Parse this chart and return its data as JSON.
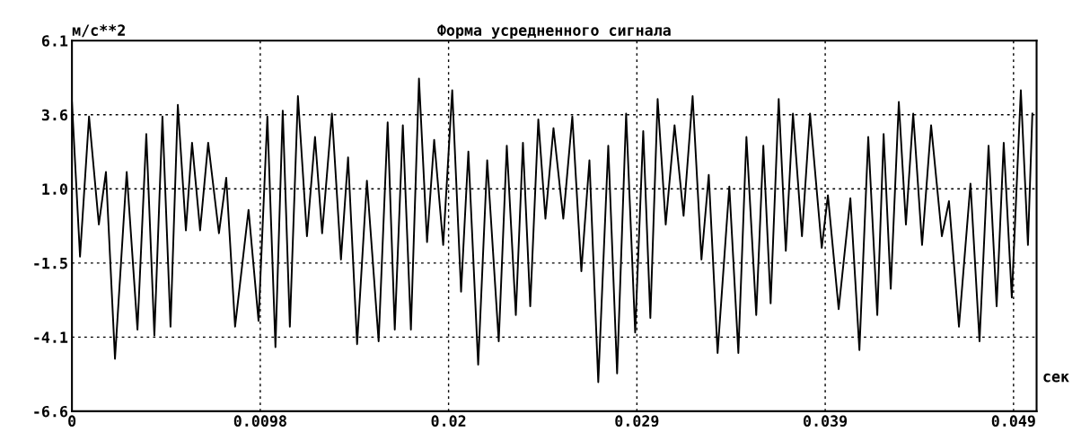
{
  "chart_data": {
    "type": "line",
    "title": "Форма усредненного сигнала",
    "ylabel": "м/с**2",
    "xlabel": "сек",
    "x": [
      0,
      0.00042,
      0.00089,
      0.0014,
      0.00177,
      0.00224,
      0.00285,
      0.00341,
      0.00387,
      0.00429,
      0.00471,
      0.00513,
      0.00551,
      0.00593,
      0.00625,
      0.00667,
      0.00709,
      0.00765,
      0.00803,
      0.00849,
      0.00919,
      0.00971,
      0.01017,
      0.01059,
      0.01097,
      0.01134,
      0.01176,
      0.01223,
      0.01265,
      0.01302,
      0.01353,
      0.014,
      0.01437,
      0.01484,
      0.01535,
      0.01596,
      0.01643,
      0.0168,
      0.01722,
      0.01764,
      0.01806,
      0.01848,
      0.01885,
      0.01932,
      0.01979,
      0.02025,
      0.02063,
      0.02114,
      0.02161,
      0.02221,
      0.02263,
      0.0231,
      0.02347,
      0.02385,
      0.02427,
      0.02464,
      0.02506,
      0.02557,
      0.02604,
      0.02651,
      0.02693,
      0.02739,
      0.02791,
      0.02837,
      0.02884,
      0.02931,
      0.02973,
      0.0301,
      0.03048,
      0.0309,
      0.03136,
      0.03183,
      0.0323,
      0.03276,
      0.03314,
      0.0336,
      0.03421,
      0.03468,
      0.0351,
      0.03561,
      0.03598,
      0.03636,
      0.03678,
      0.03715,
      0.03752,
      0.03799,
      0.03841,
      0.03902,
      0.03934,
      0.0399,
      0.04051,
      0.04098,
      0.04144,
      0.04191,
      0.04224,
      0.04261,
      0.04303,
      0.0434,
      0.04378,
      0.04424,
      0.04471,
      0.04527,
      0.04564,
      0.04616,
      0.04676,
      0.04723,
      0.0477,
      0.04812,
      0.04849,
      0.04891,
      0.04938,
      0.04975,
      0.04998
    ],
    "series": [
      {
        "color": "#000000",
        "values": [
          4.0,
          -1.3,
          3.5,
          -0.2,
          1.6,
          -4.8,
          1.6,
          -3.8,
          2.9,
          -4.0,
          3.5,
          -3.7,
          3.9,
          -0.4,
          2.6,
          -0.4,
          2.6,
          -0.5,
          1.4,
          -3.7,
          0.3,
          -3.5,
          3.5,
          -4.4,
          3.7,
          -3.7,
          4.2,
          -0.6,
          2.8,
          -0.5,
          3.6,
          -1.4,
          2.1,
          -4.3,
          1.3,
          -4.2,
          3.3,
          -3.8,
          3.2,
          -3.8,
          4.8,
          -0.8,
          2.7,
          -0.9,
          4.4,
          -2.5,
          2.3,
          -5.0,
          2.0,
          -4.2,
          2.5,
          -3.3,
          2.6,
          -3.0,
          3.4,
          0.0,
          3.1,
          0.0,
          3.5,
          -1.8,
          2.0,
          -5.6,
          2.5,
          -5.3,
          3.6,
          -3.9,
          3.0,
          -3.4,
          4.1,
          -0.2,
          3.2,
          0.1,
          4.2,
          -1.4,
          1.5,
          -4.6,
          1.1,
          -4.6,
          2.8,
          -3.3,
          2.5,
          -2.9,
          4.1,
          -1.1,
          3.6,
          -0.6,
          3.6,
          -1.0,
          0.8,
          -3.1,
          0.7,
          -4.5,
          2.8,
          -3.3,
          2.9,
          -2.4,
          4.0,
          -0.2,
          3.6,
          -0.9,
          3.2,
          -0.6,
          0.6,
          -3.7,
          1.2,
          -4.2,
          2.5,
          -3.0,
          2.6,
          -2.7,
          4.4,
          -0.9,
          3.6
        ]
      }
    ],
    "xlim": [
      0,
      0.0502
    ],
    "ylim": [
      -6.6,
      6.1
    ],
    "xticks": [
      0,
      0.0098,
      {
        "value": 0.0196,
        "label": "0.02"
      },
      {
        "value": 0.0294,
        "label": "0.029"
      },
      {
        "value": 0.0392,
        "label": "0.039"
      },
      0.049
    ],
    "yticks": [
      -6.6,
      {
        "value": -4.06,
        "label": "-4.1"
      },
      {
        "value": -1.52,
        "label": "-1.5"
      },
      {
        "value": 1.02,
        "label": "1.0"
      },
      {
        "value": 3.56,
        "label": "3.6"
      },
      6.1
    ],
    "grid": true,
    "legend": false,
    "marker": "none",
    "line_style": "solid"
  }
}
